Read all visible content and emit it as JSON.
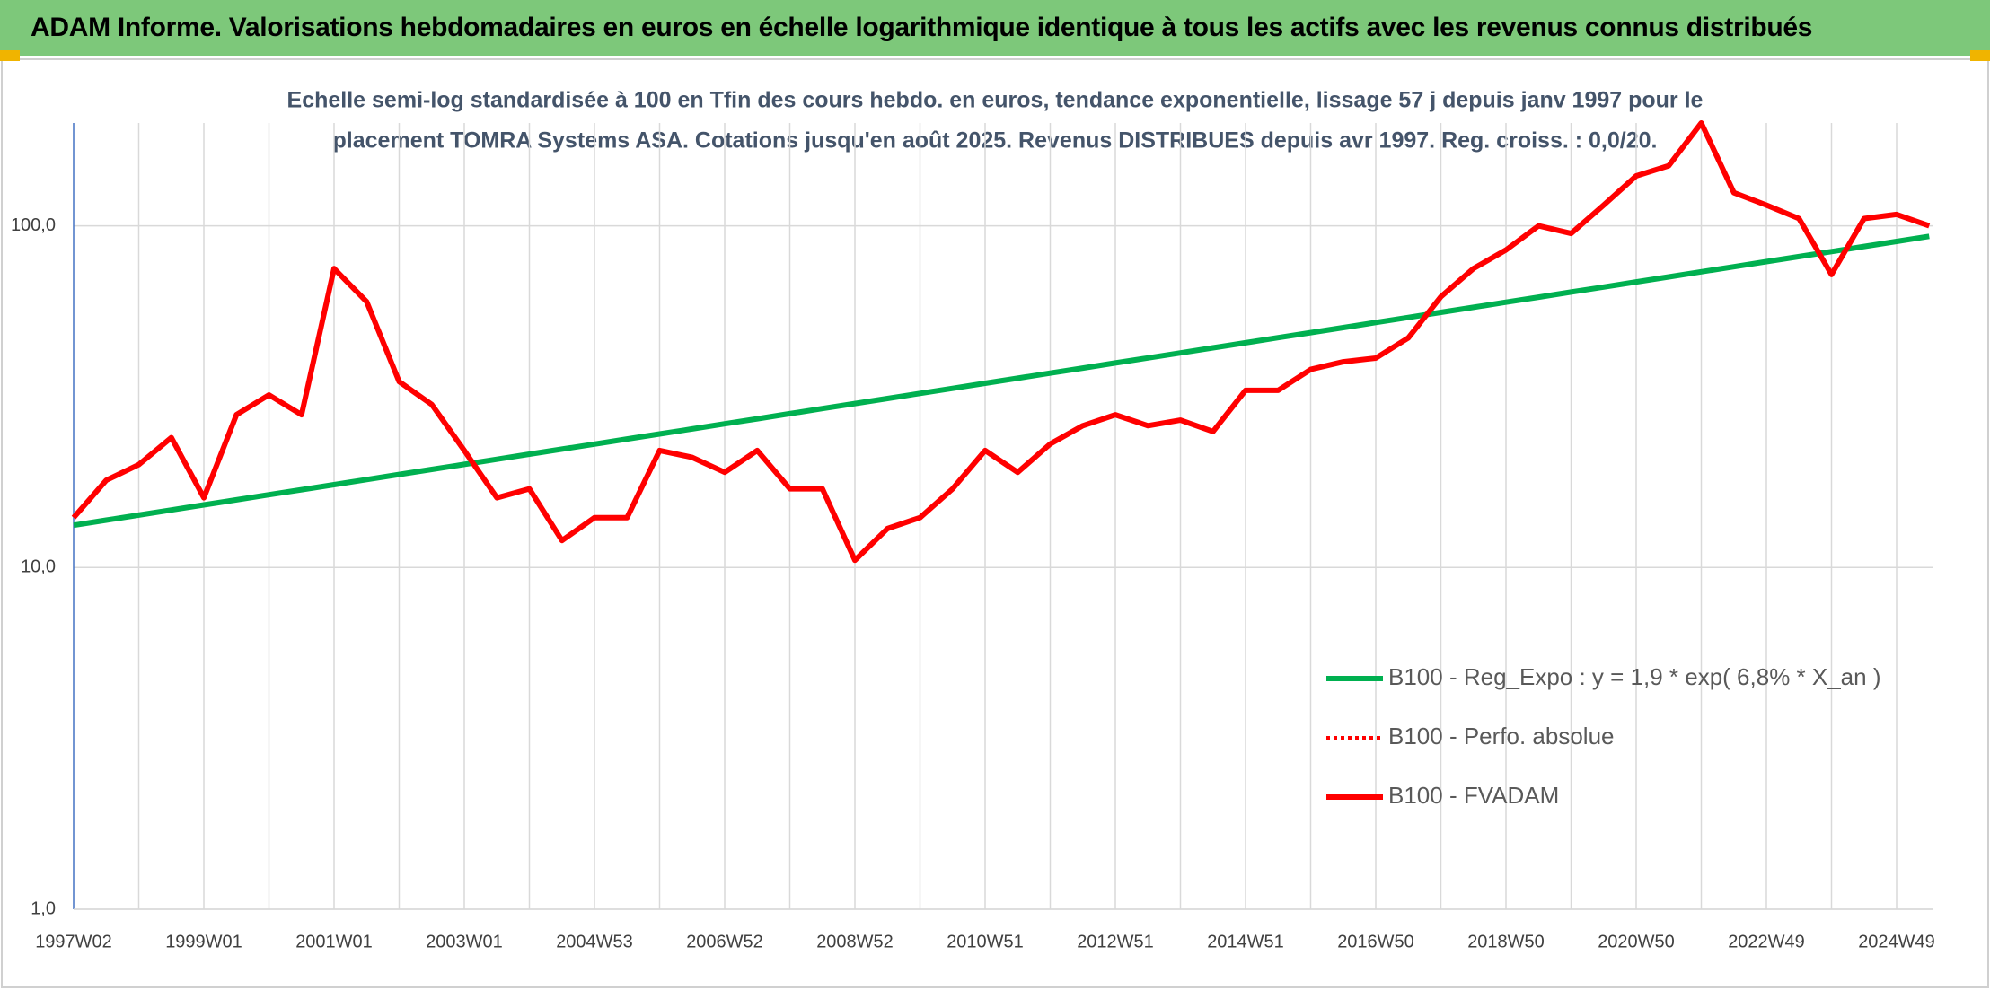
{
  "chart_data": {
    "type": "line",
    "title": "ADAM Informe. Valorisations hebdomadaires en euros en échelle logarithmique identique à tous les actifs avec les revenus connus distribués",
    "subtitle": [
      "Echelle semi-log standardisée à 100 en Tfin des cours hebdo. en euros, tendance exponentielle, lissage 57 j depuis janv 1997 pour le",
      "placement TOMRA Systems ASA. Cotations jusqu'en août 2025. Revenus DISTRIBUES depuis avr 1997. Reg. croiss. : 0,0/20."
    ],
    "categories": [
      "1997W02",
      null,
      null,
      null,
      "1999W01",
      null,
      null,
      null,
      "2001W01",
      null,
      null,
      null,
      "2003W01",
      null,
      null,
      null,
      "2004W53",
      null,
      null,
      null,
      "2006W52",
      null,
      null,
      null,
      "2008W52",
      null,
      null,
      null,
      "2010W51",
      null,
      null,
      null,
      "2012W51",
      null,
      null,
      null,
      "2014W51",
      null,
      null,
      null,
      "2016W50",
      null,
      null,
      null,
      "2018W50",
      null,
      null,
      null,
      "2020W50",
      null,
      null,
      null,
      "2022W49",
      null,
      null,
      null,
      "2024W49",
      null
    ],
    "log_scale": true,
    "grid": true,
    "ylim": [
      1,
      200
    ],
    "yticks": [
      {
        "value": 1,
        "label": "1,0"
      },
      {
        "value": 10,
        "label": "10,0"
      },
      {
        "value": 100,
        "label": "100,0"
      }
    ],
    "series": [
      {
        "name": "B100 - Reg_Expo : y = 1,9 * exp( 6,8% *  X_an )",
        "color": "#00b050",
        "style": "solid",
        "values": [
          13.3,
          13.76,
          14.24,
          14.74,
          15.25,
          15.78,
          16.33,
          16.89,
          17.48,
          18.09,
          18.72,
          19.37,
          20.04,
          20.74,
          21.46,
          22.2,
          22.97,
          23.77,
          24.6,
          25.45,
          26.34,
          27.25,
          28.2,
          29.18,
          30.19,
          31.24,
          32.33,
          33.45,
          34.61,
          35.81,
          37.06,
          38.34,
          39.68,
          41.05,
          42.48,
          43.95,
          45.48,
          47.06,
          48.69,
          50.38,
          52.13,
          53.94,
          55.82,
          57.76,
          59.76,
          61.84,
          63.99,
          66.21,
          68.51,
          70.89,
          73.35,
          75.9,
          78.54,
          81.27,
          84.09,
          87.01,
          90.03,
          93.16
        ]
      },
      {
        "name": "B100 - Perfo. absolue",
        "color": "#ff0000",
        "style": "dotted",
        "values": [
          14,
          18,
          20,
          24,
          16,
          28,
          32,
          28,
          75,
          60,
          35,
          30,
          22,
          16,
          17,
          12,
          14,
          14,
          22,
          21,
          19,
          22,
          17,
          17,
          10.5,
          13,
          14,
          17,
          22,
          19,
          23,
          26,
          28,
          26,
          27,
          25,
          33,
          33,
          38,
          40,
          41,
          47,
          62,
          75,
          85,
          100,
          95,
          115,
          140,
          150,
          200,
          125,
          115,
          105,
          72,
          105,
          108,
          100
        ]
      },
      {
        "name": "B100 - FVADAM",
        "color": "#ff0000",
        "style": "solid",
        "values": [
          14,
          18,
          20,
          24,
          16,
          28,
          32,
          28,
          75,
          60,
          35,
          30,
          22,
          16,
          17,
          12,
          14,
          14,
          22,
          21,
          19,
          22,
          17,
          17,
          10.5,
          13,
          14,
          17,
          22,
          19,
          23,
          26,
          28,
          26,
          27,
          25,
          33,
          33,
          38,
          40,
          41,
          47,
          62,
          75,
          85,
          100,
          95,
          115,
          140,
          150,
          200,
          125,
          115,
          105,
          72,
          105,
          108,
          100
        ]
      }
    ]
  }
}
